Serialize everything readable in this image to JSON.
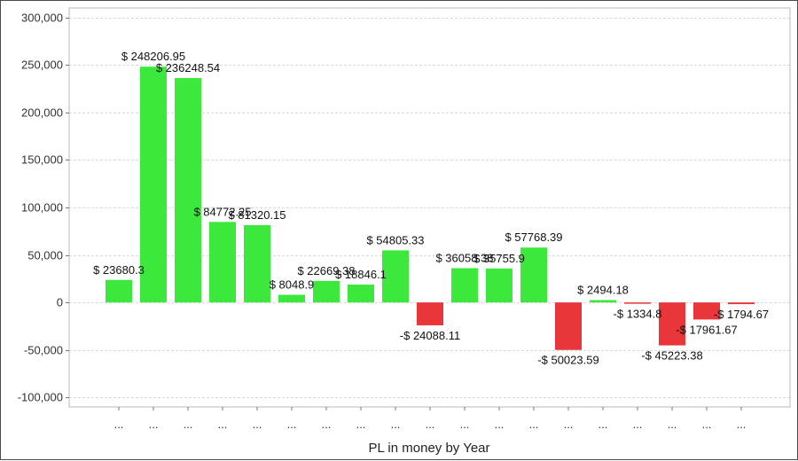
{
  "chart_data": {
    "type": "bar",
    "title": "",
    "xlabel": "PL in money by Year",
    "ylabel": "",
    "ylim": [
      -110000,
      310000
    ],
    "y_ticks": [
      -100000,
      -50000,
      0,
      50000,
      100000,
      150000,
      200000,
      250000,
      300000
    ],
    "y_tick_labels": [
      "-100,000",
      "-50,000",
      "0",
      "50,000",
      "100,000",
      "150,000",
      "200,000",
      "250,000",
      "300,000"
    ],
    "grid": true,
    "legend": "none",
    "colors": {
      "positive": "#3de83d",
      "negative": "#e8363a"
    },
    "categories": [
      "...",
      "...",
      "...",
      "...",
      "...",
      "...",
      "...",
      "...",
      "...",
      "...",
      "...",
      "...",
      "...",
      "...",
      "...",
      "...",
      "...",
      "...",
      "..."
    ],
    "values": [
      23680.3,
      248206.95,
      236248.54,
      84772.25,
      81320.15,
      8048.9,
      22669.38,
      18846.1,
      54805.33,
      -24088.11,
      36058.38,
      35755.9,
      57768.39,
      -50023.59,
      2494.18,
      -1334.8,
      -45223.38,
      -17961.67,
      -1794.67
    ],
    "data_labels": [
      "$ 23680.3",
      "$ 248206.95",
      "$ 236248.54",
      "$ 84772.25",
      "$ 81320.15",
      "$ 8048.9",
      "$ 22669.38",
      "$ 18846.1",
      "$ 54805.33",
      "-$ 24088.11",
      "$ 36058.38",
      "$ 35755.9",
      "$ 57768.39",
      "-$ 50023.59",
      "$ 2494.18",
      "-$ 1334.8",
      "-$ 45223.38",
      "-$ 17961.67",
      "-$ 1794.67"
    ]
  }
}
